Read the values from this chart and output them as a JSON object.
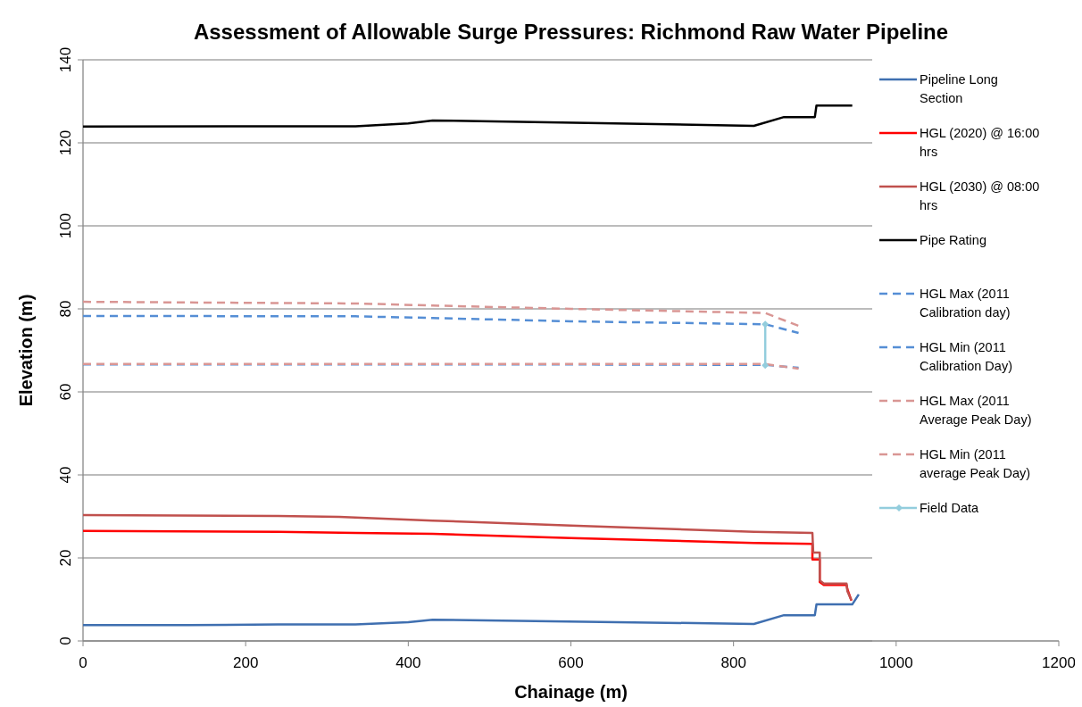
{
  "chart_data": {
    "type": "line",
    "title": "Assessment of Allowable Surge Pressures: Richmond Raw Water Pipeline",
    "xlabel": "Chainage (m)",
    "ylabel": "Elevation (m)",
    "xlim": [
      0,
      1200
    ],
    "xticks": [
      0,
      200,
      400,
      600,
      800,
      1000,
      1200
    ],
    "ylim": [
      0,
      140
    ],
    "yticks": [
      0,
      20,
      40,
      60,
      80,
      100,
      120,
      140
    ],
    "grid": "y",
    "legend": "right",
    "marker": "none",
    "series": [
      {
        "name": "Pipeline Long Section",
        "color": "#3f6fb0",
        "line_style": "solid",
        "x": [
          0,
          130,
          240,
          335,
          400,
          430,
          825,
          862,
          900,
          902,
          946,
          954
        ],
        "values": [
          3.8,
          3.8,
          4.0,
          4.0,
          4.5,
          5.1,
          4.1,
          6.2,
          6.2,
          8.8,
          8.8,
          11.2
        ]
      },
      {
        "name": "HGL (2020) @ 16:00 hrs",
        "color": "#ff0000",
        "line_style": "solid",
        "x": [
          0,
          240,
          335,
          430,
          600,
          825,
          897,
          897,
          906,
          906,
          911,
          939,
          940,
          945
        ],
        "values": [
          26.5,
          26.3,
          26.0,
          25.8,
          24.8,
          23.6,
          23.4,
          19.6,
          19.6,
          14.2,
          13.5,
          13.5,
          12.5,
          9.7
        ]
      },
      {
        "name": "HGL (2030) @ 08:00 hrs",
        "color": "#c0504d",
        "line_style": "solid",
        "x": [
          0,
          240,
          315,
          430,
          600,
          825,
          897,
          898,
          906,
          906,
          911,
          939,
          940,
          945
        ],
        "values": [
          30.3,
          30.1,
          29.9,
          29.0,
          27.8,
          26.3,
          26.0,
          21.3,
          21.3,
          14.6,
          13.8,
          13.8,
          12.0,
          9.8
        ]
      },
      {
        "name": "Pipe Rating",
        "color": "#000000",
        "line_style": "solid",
        "x": [
          0,
          240,
          335,
          400,
          430,
          825,
          862,
          900,
          902,
          946
        ],
        "values": [
          123.9,
          124.0,
          124.0,
          124.7,
          125.4,
          124.1,
          126.2,
          126.2,
          129.0,
          129.0
        ]
      },
      {
        "name": "HGL Max (2011 Calibration day)",
        "color": "#558ed5",
        "line_style": "dashed",
        "x": [
          0,
          335,
          430,
          600,
          839,
          880
        ],
        "values": [
          78.3,
          78.2,
          77.8,
          77.0,
          76.3,
          74.2
        ]
      },
      {
        "name": "HGL Min (2011 Calibration Day)",
        "color": "#558ed5",
        "line_style": "dashed",
        "x": [
          0,
          335,
          600,
          839,
          880
        ],
        "values": [
          66.6,
          66.6,
          66.6,
          66.5,
          65.8
        ]
      },
      {
        "name": "HGL Max (2011 Average Peak Day)",
        "color": "#d99694",
        "line_style": "dashed",
        "x": [
          0,
          335,
          430,
          600,
          839,
          880
        ],
        "values": [
          81.7,
          81.3,
          80.8,
          80.0,
          79.0,
          75.9
        ]
      },
      {
        "name": "HGL Min (2011 average Peak Day)",
        "color": "#d99694",
        "line_style": "dashed",
        "x": [
          0,
          335,
          600,
          839,
          880
        ],
        "values": [
          66.7,
          66.7,
          66.7,
          66.7,
          65.6
        ]
      },
      {
        "name": "Field Data",
        "color": "#93cddd",
        "line_style": "solid",
        "marker": "diamond",
        "x": [
          839,
          839
        ],
        "values": [
          76.3,
          66.4
        ]
      }
    ]
  }
}
